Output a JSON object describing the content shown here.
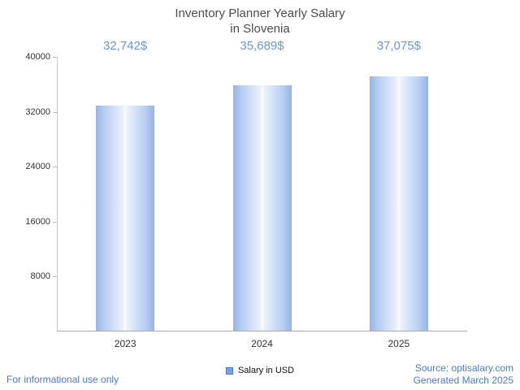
{
  "chart_data": {
    "type": "bar",
    "title": "Inventory Planner Yearly Salary in Slovenia",
    "title_lines": [
      "Inventory Planner Yearly Salary",
      "in Slovenia"
    ],
    "categories": [
      "2023",
      "2024",
      "2025"
    ],
    "values": [
      32742,
      35689,
      37075
    ],
    "value_labels": [
      "32,742$",
      "35,689$",
      "37,075$"
    ],
    "series": [
      {
        "name": "Salary in USD",
        "values": [
          32742,
          35689,
          37075
        ]
      }
    ],
    "ylim": [
      0,
      40000
    ],
    "yticks": [
      8000,
      16000,
      24000,
      32000,
      40000
    ],
    "grid": false,
    "legend_position": "bottom-center",
    "bar_color_edge": "#97b4e6",
    "bar_color_center": "#f8fbff",
    "value_label_color": "#6d96d6"
  },
  "legend": {
    "label": "Salary in USD"
  },
  "footer": {
    "disclaimer": "For informational use only",
    "source": "Source: optisalary.com",
    "generated": "Generated March 2025"
  }
}
